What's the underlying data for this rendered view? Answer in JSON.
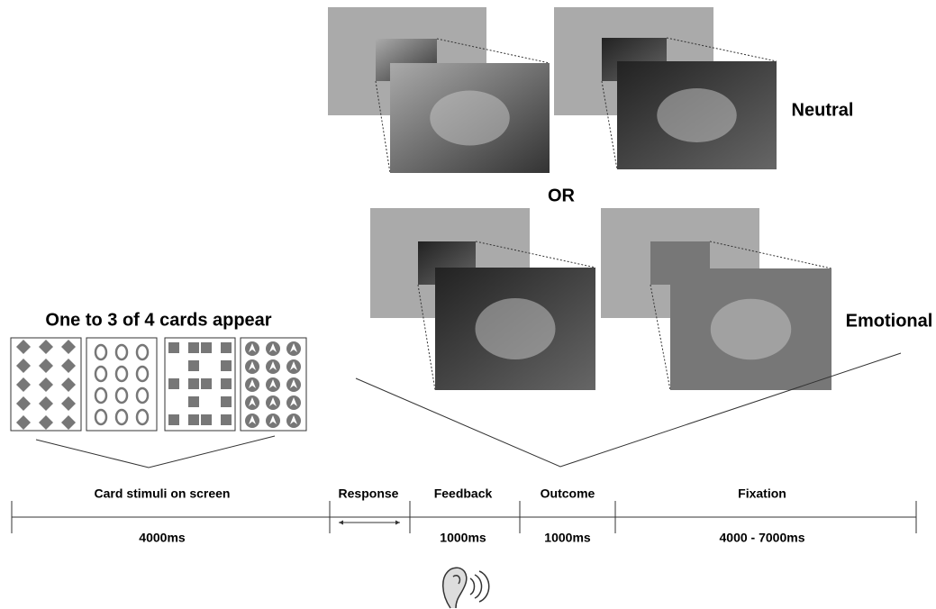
{
  "stimuli": {
    "neutral_label": "Neutral",
    "or_label": "OR",
    "emotional_label": "Emotional"
  },
  "cards": {
    "title": "One to 3 of 4 cards appear"
  },
  "timeline": {
    "phases": [
      {
        "label": "Card stimuli on screen",
        "duration": "4000ms"
      },
      {
        "label": "Response"
      },
      {
        "label": "Feedback",
        "duration": "1000ms"
      },
      {
        "label": "Outcome",
        "duration": "1000ms"
      },
      {
        "label": "Fixation",
        "duration": "4000 - 7000ms"
      }
    ]
  }
}
